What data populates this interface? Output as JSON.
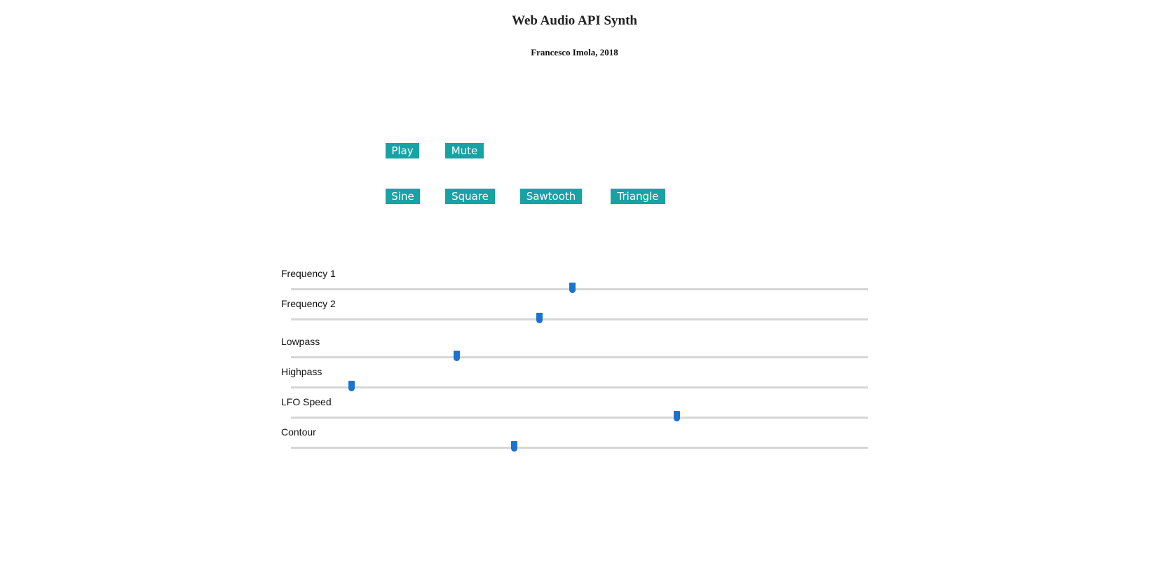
{
  "header": {
    "title": "Web Audio API Synth",
    "subtitle": "Francesco Imola, 2018"
  },
  "transport": {
    "play_label": "Play",
    "mute_label": "Mute"
  },
  "waveforms": {
    "sine_label": "Sine",
    "square_label": "Square",
    "sawtooth_label": "Sawtooth",
    "triangle_label": "Triangle"
  },
  "sliders": [
    {
      "label": "Frequency 1",
      "value_fraction": 0.487
    },
    {
      "label": "Frequency 2",
      "value_fraction": 0.43
    },
    {
      "label": "Lowpass",
      "value_fraction": 0.287
    },
    {
      "label": "Highpass",
      "value_fraction": 0.105
    },
    {
      "label": "LFO Speed",
      "value_fraction": 0.668
    },
    {
      "label": "Contour",
      "value_fraction": 0.386
    }
  ],
  "colors": {
    "button_bg": "#17a2a5",
    "button_text": "#ffffff",
    "slider_thumb": "#1a73d1",
    "slider_track": "#d6d6d6"
  }
}
